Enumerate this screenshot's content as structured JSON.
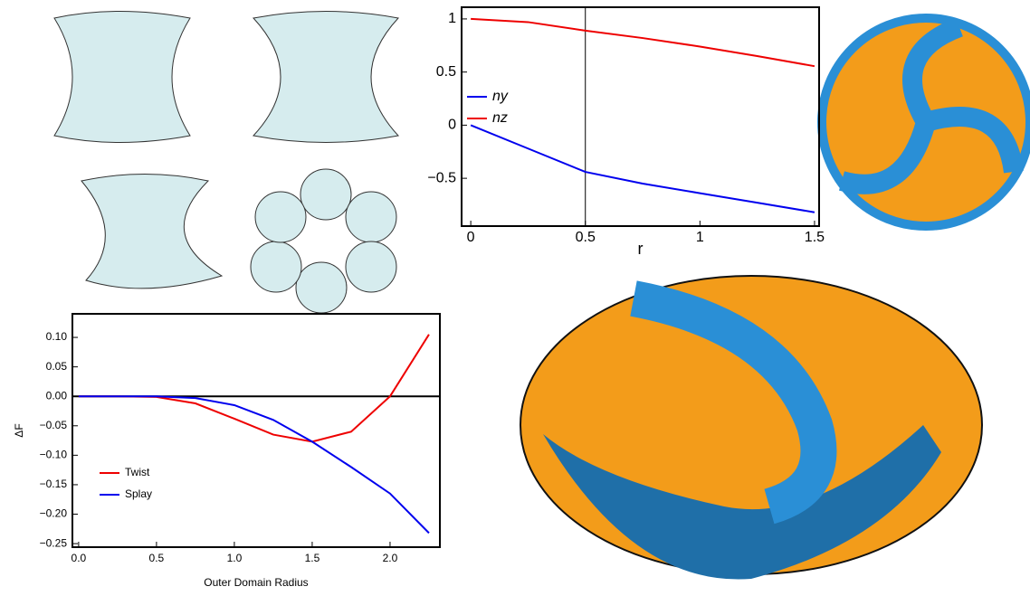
{
  "chart_data": [
    {
      "type": "line",
      "x_label": "r",
      "xlim": [
        -0.04,
        1.52
      ],
      "ylim": [
        -0.95,
        1.11
      ],
      "xticks": [
        0,
        0.5,
        1,
        1.5
      ],
      "yticks": [
        {
          "value": -0.5,
          "label": "−0.5"
        },
        0,
        0.5,
        1
      ],
      "vline": 0.5,
      "legend": "left",
      "grid": false,
      "x": [
        0,
        0.25,
        0.5,
        0.75,
        1,
        1.25,
        1.5
      ],
      "series": [
        {
          "name": "ny",
          "color": "#0000ee",
          "values": [
            0,
            -0.22,
            -0.44,
            -0.55,
            -0.64,
            -0.73,
            -0.82
          ]
        },
        {
          "name": "nz",
          "color": "#ee0000",
          "values": [
            1,
            0.97,
            0.89,
            0.82,
            0.74,
            0.65,
            0.555
          ]
        }
      ]
    },
    {
      "type": "line",
      "x_label": "Outer Domain Radius",
      "y_label": "ΔF",
      "xlim": [
        -0.04,
        2.32
      ],
      "ylim": [
        -0.256,
        0.14
      ],
      "xticks": [
        {
          "value": 0,
          "label": "0.0"
        },
        {
          "value": 0.5,
          "label": "0.5"
        },
        {
          "value": 1,
          "label": "1.0"
        },
        {
          "value": 1.5,
          "label": "1.5"
        },
        {
          "value": 2,
          "label": "2.0"
        }
      ],
      "yticks": [
        {
          "value": -0.25,
          "label": "−0.25"
        },
        {
          "value": -0.2,
          "label": "−0.20"
        },
        {
          "value": -0.15,
          "label": "−0.15"
        },
        {
          "value": -0.1,
          "label": "−0.10"
        },
        {
          "value": -0.05,
          "label": "−0.05"
        },
        {
          "value": 0,
          "label": "0.00"
        },
        {
          "value": 0.05,
          "label": "0.05"
        },
        {
          "value": 0.1,
          "label": "0.10"
        }
      ],
      "hline": 0,
      "legend": "lower left",
      "grid": false,
      "x": [
        0,
        0.25,
        0.5,
        0.75,
        1,
        1.25,
        1.5,
        1.75,
        2,
        2.25
      ],
      "series": [
        {
          "name": "Twist",
          "color": "#ee0000",
          "values": [
            0,
            0,
            -0.001,
            -0.012,
            -0.038,
            -0.065,
            -0.077,
            -0.06,
            0,
            0.105
          ]
        },
        {
          "name": "Splay",
          "color": "#0000ee",
          "values": [
            0,
            0,
            0,
            -0.003,
            -0.015,
            -0.04,
            -0.077,
            -0.12,
            -0.165,
            -0.232
          ]
        }
      ]
    }
  ]
}
